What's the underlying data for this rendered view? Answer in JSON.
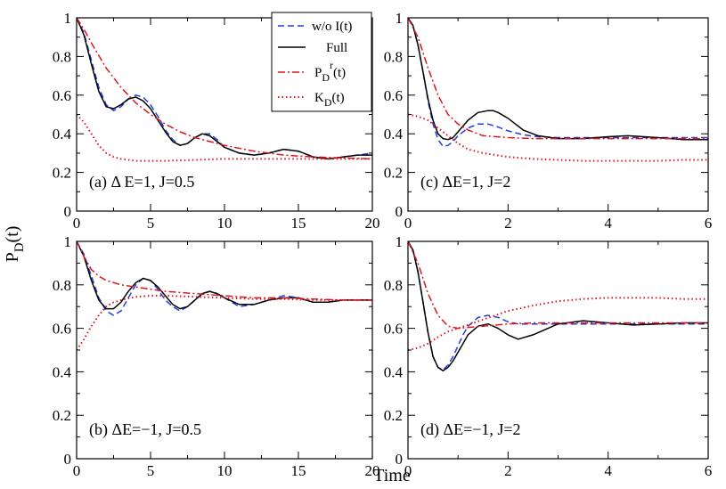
{
  "figure": {
    "ylabel": "P",
    "ylabel_sub": "D",
    "ylabel_tail": "(t)",
    "xlabel": "Time"
  },
  "legend": {
    "entries": [
      {
        "key": "wo",
        "label": "w/o I(t)",
        "color": "#1f3fd6",
        "style": "dashed"
      },
      {
        "key": "full",
        "label": "Full",
        "color": "#000000",
        "style": "solid"
      },
      {
        "key": "pr",
        "label_main": "P",
        "label_sub": "D",
        "label_sup": "r",
        "label_tail": "(t)",
        "color": "#e0141e",
        "style": "dashdot"
      },
      {
        "key": "k",
        "label_main": "K",
        "label_sub": "D",
        "label_tail": "(t)",
        "color": "#e0141e",
        "style": "dotted"
      }
    ]
  },
  "chart_data": [
    {
      "type": "line",
      "panel": "a",
      "annotation": "(a) Δ E=1, J=0.5",
      "xlim": [
        0,
        20
      ],
      "ylim": [
        0,
        1
      ],
      "xticks": [
        0,
        5,
        10,
        15,
        20
      ],
      "yticks": [
        0,
        0.2,
        0.4,
        0.6,
        0.8,
        1
      ],
      "ytick_labels": [
        "0",
        "0.2",
        "0.4",
        "0.6",
        "0.8",
        "1"
      ],
      "grid": false,
      "series": [
        {
          "name": "w/o I(t)",
          "x": [
            0,
            0.5,
            1,
            1.5,
            2,
            2.5,
            3,
            3.5,
            4,
            4.5,
            5,
            5.5,
            6,
            6.5,
            7,
            7.5,
            8,
            8.5,
            9,
            9.5,
            10,
            11,
            12,
            13,
            14,
            15,
            16,
            17,
            18,
            19,
            20
          ],
          "y": [
            1.0,
            0.92,
            0.78,
            0.64,
            0.55,
            0.52,
            0.54,
            0.58,
            0.6,
            0.59,
            0.55,
            0.49,
            0.42,
            0.37,
            0.34,
            0.35,
            0.38,
            0.4,
            0.4,
            0.37,
            0.33,
            0.3,
            0.29,
            0.3,
            0.32,
            0.31,
            0.28,
            0.27,
            0.28,
            0.29,
            0.3
          ]
        },
        {
          "name": "Full",
          "x": [
            0,
            0.5,
            1,
            1.5,
            2,
            2.5,
            3,
            3.5,
            4,
            4.5,
            5,
            5.5,
            6,
            6.5,
            7,
            7.5,
            8,
            8.5,
            9,
            9.5,
            10,
            11,
            12,
            13,
            14,
            15,
            16,
            17,
            18,
            19,
            20
          ],
          "y": [
            1.0,
            0.91,
            0.76,
            0.62,
            0.54,
            0.53,
            0.55,
            0.58,
            0.59,
            0.57,
            0.53,
            0.47,
            0.41,
            0.36,
            0.34,
            0.35,
            0.38,
            0.4,
            0.39,
            0.36,
            0.33,
            0.3,
            0.29,
            0.3,
            0.32,
            0.31,
            0.28,
            0.27,
            0.28,
            0.29,
            0.29
          ]
        },
        {
          "name": "P_D^r(t)",
          "x": [
            0,
            0.5,
            1,
            2,
            3,
            4,
            5,
            6,
            7,
            8,
            9,
            10,
            12,
            14,
            16,
            18,
            20
          ],
          "y": [
            1.0,
            0.94,
            0.87,
            0.74,
            0.64,
            0.56,
            0.5,
            0.45,
            0.41,
            0.38,
            0.36,
            0.34,
            0.31,
            0.29,
            0.28,
            0.275,
            0.27
          ]
        },
        {
          "name": "K_D(t)",
          "x": [
            0,
            0.5,
            1,
            1.5,
            2,
            2.5,
            3,
            4,
            5,
            6,
            8,
            10,
            12,
            14,
            16,
            18,
            20
          ],
          "y": [
            0.5,
            0.46,
            0.4,
            0.34,
            0.3,
            0.28,
            0.27,
            0.26,
            0.26,
            0.26,
            0.265,
            0.27,
            0.27,
            0.27,
            0.27,
            0.27,
            0.27
          ]
        }
      ]
    },
    {
      "type": "line",
      "panel": "c",
      "annotation": "(c) ΔE=1, J=2",
      "xlim": [
        0,
        6
      ],
      "ylim": [
        0,
        1
      ],
      "xticks": [
        0,
        2,
        4,
        6
      ],
      "yticks": [
        0,
        0.2,
        0.4,
        0.6,
        0.8,
        1
      ],
      "ytick_labels": [
        "0",
        "0.2",
        "0.4",
        "0.6",
        "0.8",
        "1"
      ],
      "grid": false,
      "series": [
        {
          "name": "w/o I(t)",
          "x": [
            0,
            0.1,
            0.2,
            0.3,
            0.4,
            0.5,
            0.6,
            0.7,
            0.8,
            0.9,
            1.0,
            1.2,
            1.4,
            1.6,
            1.8,
            2.0,
            2.3,
            2.6,
            3.0,
            3.5,
            4.0,
            4.5,
            5.0,
            5.5,
            6.0
          ],
          "y": [
            1.0,
            0.96,
            0.86,
            0.72,
            0.57,
            0.45,
            0.37,
            0.335,
            0.34,
            0.36,
            0.39,
            0.43,
            0.45,
            0.45,
            0.435,
            0.415,
            0.395,
            0.385,
            0.38,
            0.38,
            0.38,
            0.38,
            0.38,
            0.38,
            0.38
          ]
        },
        {
          "name": "Full",
          "x": [
            0,
            0.1,
            0.2,
            0.3,
            0.4,
            0.5,
            0.6,
            0.7,
            0.8,
            0.9,
            1.0,
            1.2,
            1.4,
            1.6,
            1.7,
            1.8,
            2.0,
            2.3,
            2.6,
            3.0,
            3.5,
            4.0,
            4.4,
            5.0,
            5.5,
            6.0
          ],
          "y": [
            1.0,
            0.96,
            0.86,
            0.72,
            0.58,
            0.47,
            0.4,
            0.375,
            0.37,
            0.38,
            0.41,
            0.47,
            0.51,
            0.52,
            0.52,
            0.51,
            0.48,
            0.42,
            0.39,
            0.375,
            0.375,
            0.385,
            0.39,
            0.38,
            0.37,
            0.37
          ]
        },
        {
          "name": "P_D^r(t)",
          "x": [
            0,
            0.2,
            0.4,
            0.6,
            0.8,
            1.0,
            1.2,
            1.5,
            2.0,
            2.5,
            3.0,
            4.0,
            5.0,
            6.0
          ],
          "y": [
            1.0,
            0.9,
            0.74,
            0.6,
            0.5,
            0.45,
            0.42,
            0.39,
            0.38,
            0.375,
            0.375,
            0.375,
            0.375,
            0.375
          ]
        },
        {
          "name": "K_D(t)",
          "x": [
            0,
            0.2,
            0.4,
            0.6,
            0.8,
            1.0,
            1.2,
            1.5,
            2.0,
            2.5,
            3.0,
            3.5,
            4.0,
            4.5,
            5.0,
            5.5,
            6.0
          ],
          "y": [
            0.5,
            0.49,
            0.47,
            0.43,
            0.39,
            0.35,
            0.32,
            0.3,
            0.28,
            0.27,
            0.265,
            0.26,
            0.26,
            0.26,
            0.26,
            0.265,
            0.265
          ]
        }
      ]
    },
    {
      "type": "line",
      "panel": "b",
      "annotation": "(b) ΔE=−1, J=0.5",
      "xlim": [
        0,
        20
      ],
      "ylim": [
        0,
        1
      ],
      "xticks": [
        0,
        5,
        10,
        15,
        20
      ],
      "yticks": [
        0,
        0.2,
        0.4,
        0.6,
        0.8,
        1
      ],
      "ytick_labels": [
        "0",
        "0.2",
        "0.4",
        "0.6",
        "0.8",
        "1"
      ],
      "grid": false,
      "series": [
        {
          "name": "w/o I(t)",
          "x": [
            0,
            0.5,
            1,
            1.5,
            2,
            2.5,
            3,
            3.5,
            4,
            4.5,
            5,
            5.5,
            6,
            6.5,
            7,
            7.5,
            8,
            8.5,
            9,
            9.5,
            10,
            11,
            12,
            13,
            14,
            15,
            16,
            17,
            18,
            19,
            20
          ],
          "y": [
            1.0,
            0.94,
            0.84,
            0.74,
            0.68,
            0.66,
            0.68,
            0.74,
            0.8,
            0.83,
            0.82,
            0.78,
            0.73,
            0.7,
            0.68,
            0.7,
            0.73,
            0.76,
            0.77,
            0.76,
            0.74,
            0.7,
            0.71,
            0.73,
            0.75,
            0.74,
            0.72,
            0.72,
            0.73,
            0.73,
            0.73
          ]
        },
        {
          "name": "Full",
          "x": [
            0,
            0.5,
            1,
            1.5,
            2,
            2.5,
            3,
            3.5,
            4,
            4.5,
            5,
            5.5,
            6,
            6.5,
            7,
            7.5,
            8,
            8.5,
            9,
            9.5,
            10,
            11,
            12,
            13,
            14,
            15,
            16,
            17,
            18,
            19,
            20
          ],
          "y": [
            1.0,
            0.93,
            0.82,
            0.73,
            0.69,
            0.69,
            0.72,
            0.77,
            0.81,
            0.83,
            0.82,
            0.79,
            0.75,
            0.71,
            0.69,
            0.7,
            0.73,
            0.76,
            0.77,
            0.76,
            0.74,
            0.71,
            0.71,
            0.73,
            0.74,
            0.74,
            0.72,
            0.72,
            0.73,
            0.73,
            0.73
          ]
        },
        {
          "name": "P_D^r(t)",
          "x": [
            0,
            0.5,
            1,
            1.5,
            2,
            3,
            4,
            5,
            6,
            8,
            10,
            12,
            14,
            16,
            18,
            20
          ],
          "y": [
            1.0,
            0.93,
            0.87,
            0.84,
            0.82,
            0.8,
            0.79,
            0.78,
            0.77,
            0.76,
            0.75,
            0.74,
            0.74,
            0.735,
            0.73,
            0.73
          ]
        },
        {
          "name": "K_D(t)",
          "x": [
            0,
            0.5,
            1,
            1.5,
            2,
            2.5,
            3,
            4,
            5,
            6,
            8,
            10,
            12,
            14,
            16,
            18,
            20
          ],
          "y": [
            0.5,
            0.55,
            0.61,
            0.66,
            0.7,
            0.72,
            0.73,
            0.745,
            0.75,
            0.75,
            0.745,
            0.74,
            0.735,
            0.735,
            0.73,
            0.73,
            0.73
          ]
        }
      ]
    },
    {
      "type": "line",
      "panel": "d",
      "annotation": "(d) ΔE=−1, J=2",
      "xlim": [
        0,
        6
      ],
      "ylim": [
        0,
        1
      ],
      "xticks": [
        0,
        2,
        4,
        6
      ],
      "yticks": [
        0,
        0.2,
        0.4,
        0.6,
        0.8,
        1
      ],
      "ytick_labels": [
        "0",
        "0.2",
        "0.4",
        "0.6",
        "0.8",
        "1"
      ],
      "grid": false,
      "series": [
        {
          "name": "w/o I(t)",
          "x": [
            0,
            0.1,
            0.2,
            0.3,
            0.4,
            0.5,
            0.6,
            0.7,
            0.8,
            0.9,
            1.0,
            1.1,
            1.2,
            1.4,
            1.6,
            1.8,
            2.0,
            2.2,
            2.5,
            3.0,
            3.5,
            4.0,
            4.5,
            5.0,
            5.5,
            6.0
          ],
          "y": [
            1.0,
            0.96,
            0.86,
            0.72,
            0.58,
            0.47,
            0.42,
            0.41,
            0.43,
            0.47,
            0.52,
            0.57,
            0.61,
            0.65,
            0.66,
            0.65,
            0.63,
            0.62,
            0.62,
            0.62,
            0.62,
            0.62,
            0.62,
            0.62,
            0.62,
            0.62
          ]
        },
        {
          "name": "Full",
          "x": [
            0,
            0.1,
            0.2,
            0.3,
            0.4,
            0.5,
            0.6,
            0.7,
            0.8,
            0.9,
            1.0,
            1.1,
            1.2,
            1.4,
            1.6,
            1.8,
            2.0,
            2.2,
            2.5,
            3.0,
            3.5,
            4.0,
            4.5,
            5.0,
            5.5,
            6.0
          ],
          "y": [
            1.0,
            0.96,
            0.86,
            0.72,
            0.58,
            0.47,
            0.42,
            0.405,
            0.42,
            0.45,
            0.49,
            0.53,
            0.57,
            0.61,
            0.62,
            0.6,
            0.57,
            0.55,
            0.57,
            0.62,
            0.635,
            0.625,
            0.615,
            0.62,
            0.625,
            0.625
          ]
        },
        {
          "name": "P_D^r(t)",
          "x": [
            0,
            0.2,
            0.4,
            0.6,
            0.8,
            1.0,
            1.5,
            2.0,
            2.5,
            3.0,
            4.0,
            5.0,
            6.0
          ],
          "y": [
            1.0,
            0.9,
            0.76,
            0.66,
            0.61,
            0.6,
            0.61,
            0.62,
            0.625,
            0.625,
            0.625,
            0.625,
            0.625
          ]
        },
        {
          "name": "K_D(t)",
          "x": [
            0,
            0.2,
            0.4,
            0.6,
            0.8,
            1.0,
            1.5,
            2.0,
            2.5,
            3.0,
            3.5,
            4.0,
            4.5,
            5.0,
            5.5,
            6.0
          ],
          "y": [
            0.5,
            0.51,
            0.53,
            0.56,
            0.585,
            0.6,
            0.64,
            0.68,
            0.705,
            0.725,
            0.735,
            0.74,
            0.74,
            0.74,
            0.735,
            0.735
          ]
        }
      ]
    }
  ]
}
